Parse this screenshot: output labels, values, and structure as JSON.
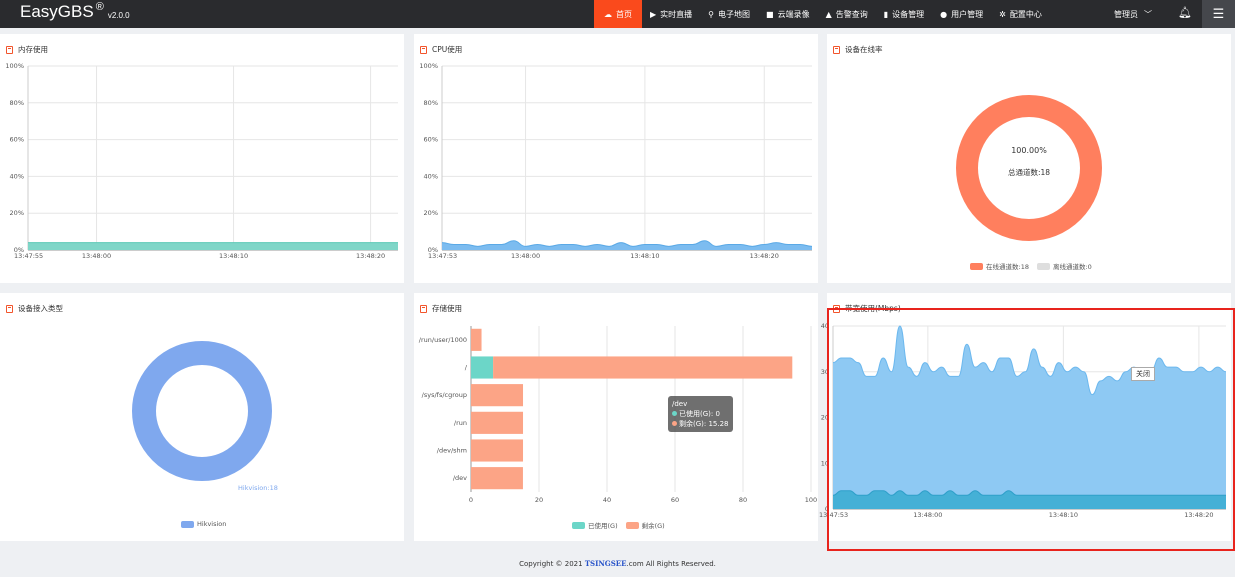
{
  "header": {
    "brand": "EasyGBS",
    "brand_mark": "®",
    "version": "v2.0.0",
    "nav": [
      {
        "label": "首页",
        "icon": "cloud-icon",
        "active": true
      },
      {
        "label": "实时直播",
        "icon": "play-icon",
        "active": false
      },
      {
        "label": "电子地图",
        "icon": "map-pin-icon",
        "active": false
      },
      {
        "label": "云端录像",
        "icon": "video-icon",
        "active": false
      },
      {
        "label": "告警查询",
        "icon": "alarm-icon",
        "active": false
      },
      {
        "label": "设备管理",
        "icon": "device-icon",
        "active": false
      },
      {
        "label": "用户管理",
        "icon": "user-icon",
        "active": false
      },
      {
        "label": "配置中心",
        "icon": "gear-icon",
        "active": false
      }
    ],
    "admin_label": "管理员"
  },
  "panels": {
    "memory": {
      "title": "内存使用"
    },
    "cpu": {
      "title": "CPU使用"
    },
    "online": {
      "title": "设备在线率",
      "center_value": "100.00%",
      "center_label": "总通道数:18",
      "legend_online": "在线通道数:18",
      "legend_offline": "离线通道数:0"
    },
    "access": {
      "title": "设备接入类型",
      "slice_label": "Hikvision:18",
      "legend": "Hikvision"
    },
    "storage": {
      "title": "存储使用",
      "legend_used": "已使用(G)",
      "legend_free": "剩余(G)",
      "tooltip": {
        "title": "/dev",
        "used": "已使用(G): 0",
        "free": "剩余(G): 15.28"
      }
    },
    "bandwidth": {
      "title": "带宽使用(Mbps)",
      "close_tip": "关闭"
    }
  },
  "colors": {
    "accent": "#fa4a1c",
    "memory_fill": "#7fd6c8",
    "cpu_fill": "#7cbcf0",
    "online": "#ff7f5e",
    "offline": "#dedede",
    "hikvision": "#7fa8ee",
    "used": "#6cd6c8",
    "free": "#fca486",
    "band_outer": "#8ec9f3",
    "band_inner": "#45b0d6"
  },
  "chart_data": [
    {
      "type": "area",
      "id": "memory",
      "title": "内存使用",
      "x_ticks": [
        "13:47:55",
        "13:48:00",
        "13:48:10",
        "13:48:20"
      ],
      "x_range": [
        -5,
        22
      ],
      "y_ticks": [
        "0%",
        "20%",
        "40%",
        "60%",
        "80%",
        "100%"
      ],
      "ylim": [
        0,
        100
      ],
      "series": [
        {
          "values": [
            4,
            4,
            4,
            4,
            4,
            4,
            4,
            4,
            4,
            4,
            4,
            4,
            4,
            4,
            4,
            4,
            4,
            4,
            4,
            4,
            4,
            4,
            4,
            4,
            4,
            4,
            4,
            4
          ]
        }
      ]
    },
    {
      "type": "area",
      "id": "cpu",
      "title": "CPU使用",
      "x_ticks": [
        "13:47:53",
        "13:48:00",
        "13:48:10",
        "13:48:20"
      ],
      "x_range": [
        -7,
        24
      ],
      "y_ticks": [
        "0%",
        "20%",
        "40%",
        "60%",
        "80%",
        "100%"
      ],
      "ylim": [
        0,
        100
      ],
      "series": [
        {
          "values": [
            4,
            3,
            3,
            2,
            3,
            3,
            5,
            2,
            3,
            2,
            3,
            3,
            2,
            3,
            2,
            4,
            2,
            3,
            3,
            2,
            3,
            3,
            5,
            2,
            3,
            3,
            2,
            3,
            4,
            3,
            3,
            2
          ]
        }
      ]
    },
    {
      "type": "pie",
      "id": "online",
      "title": "设备在线率",
      "series": [
        {
          "name": "在线通道数",
          "value": 18
        },
        {
          "name": "离线通道数",
          "value": 0
        }
      ]
    },
    {
      "type": "pie",
      "id": "access",
      "title": "设备接入类型",
      "series": [
        {
          "name": "Hikvision",
          "value": 18
        }
      ]
    },
    {
      "type": "bar",
      "id": "storage",
      "title": "存储使用",
      "orientation": "horizontal",
      "stacked": true,
      "categories": [
        "/run/user/1000",
        "/",
        "/sys/fs/cgroup",
        "/run",
        "/dev/shm",
        "/dev"
      ],
      "series": [
        {
          "name": "已使用(G)",
          "values": [
            0,
            6.5,
            0,
            0,
            0,
            0
          ]
        },
        {
          "name": "剩余(G)",
          "values": [
            3.1,
            88,
            15.3,
            15.3,
            15.3,
            15.28
          ]
        }
      ],
      "x_ticks": [
        "0",
        "20",
        "40",
        "60",
        "80",
        "100"
      ],
      "xlim": [
        0,
        100
      ]
    },
    {
      "type": "area",
      "id": "bandwidth",
      "title": "带宽使用(Mbps)",
      "x_ticks": [
        "13:47:53",
        "13:48:00",
        "13:48:10",
        "13:48:20"
      ],
      "x_range": [
        -7,
        22
      ],
      "y_ticks": [
        "0",
        "10",
        "20",
        "30",
        "40"
      ],
      "ylim": [
        0,
        40
      ],
      "series": [
        {
          "values": [
            32,
            33,
            33,
            32,
            29,
            29,
            33,
            30,
            40,
            31,
            29,
            32,
            30,
            31,
            29,
            29,
            36,
            31,
            32,
            30,
            33,
            33,
            29,
            30,
            35,
            31,
            29,
            32,
            30,
            31,
            30,
            25,
            28,
            29,
            28,
            30,
            31,
            29,
            30,
            33,
            31,
            31,
            30,
            30,
            31,
            30,
            31,
            30
          ]
        },
        {
          "values": [
            3,
            4,
            4,
            3,
            3,
            4,
            4,
            3,
            4,
            3,
            3,
            4,
            3,
            3,
            4,
            3,
            3,
            4,
            3,
            3,
            3,
            4,
            3,
            3,
            3,
            3,
            3,
            3,
            3,
            3,
            3,
            3,
            3,
            3,
            3,
            3,
            3,
            3,
            3,
            3,
            3,
            3,
            3,
            3,
            3,
            3,
            3,
            3
          ]
        }
      ]
    }
  ],
  "footer": {
    "left": "Copyright © 2021 ",
    "mid": "TSINGSEE",
    "right": ".com All Rights Reserved."
  }
}
